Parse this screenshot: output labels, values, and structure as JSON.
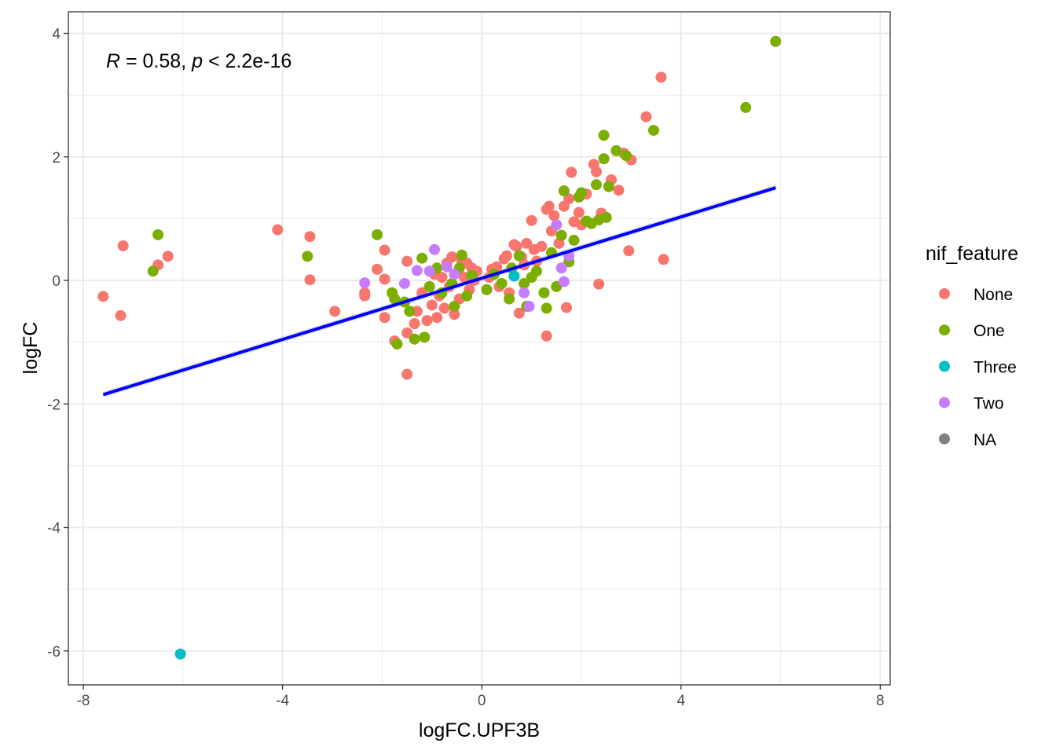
{
  "chart_data": {
    "type": "scatter",
    "xlabel": "logFC.UPF3B",
    "ylabel": "logFC",
    "xlim": [
      -8.3,
      8.2
    ],
    "ylim": [
      -6.55,
      4.35
    ],
    "x_ticks": [
      -8,
      -4,
      0,
      4,
      8
    ],
    "y_ticks": [
      -6,
      -4,
      -2,
      0,
      2,
      4
    ],
    "x_tick_labels": [
      "-8",
      "-4",
      "0",
      "4",
      "8"
    ],
    "y_tick_labels": [
      "-6",
      "-4",
      "-2",
      "0",
      "2",
      "4"
    ],
    "grid": true,
    "annotation": {
      "r_symbol": "R",
      "r_text": " = 0.58, ",
      "p_symbol": "p",
      "p_text": " < 2.2e-16"
    },
    "regression_line": {
      "x": [
        -7.6,
        5.9
      ],
      "y": [
        -1.85,
        1.5
      ],
      "color": "#0000ff"
    },
    "legend": {
      "title": "nif_feature",
      "position": "right",
      "entries": [
        {
          "label": "None",
          "color": "#f8766d"
        },
        {
          "label": "One",
          "color": "#7cae00"
        },
        {
          "label": "Three",
          "color": "#00bfc4"
        },
        {
          "label": "Two",
          "color": "#c77cff"
        },
        {
          "label": "NA",
          "color": "#808080"
        }
      ]
    },
    "series": [
      {
        "name": "None",
        "color": "#f8766d",
        "points": [
          [
            -7.6,
            -0.26
          ],
          [
            -7.25,
            -0.57
          ],
          [
            -7.2,
            0.56
          ],
          [
            -6.5,
            0.25
          ],
          [
            -6.3,
            0.39
          ],
          [
            -4.1,
            0.82
          ],
          [
            -3.45,
            0.71
          ],
          [
            -3.45,
            0.01
          ],
          [
            -2.95,
            -0.5
          ],
          [
            -2.35,
            -0.2
          ],
          [
            -2.35,
            -0.25
          ],
          [
            -2.1,
            0.18
          ],
          [
            -1.95,
            0.49
          ],
          [
            -1.95,
            0.02
          ],
          [
            -1.95,
            -0.6
          ],
          [
            -1.75,
            -0.98
          ],
          [
            -1.5,
            -1.52
          ],
          [
            -1.5,
            0.31
          ],
          [
            -1.5,
            -0.85
          ],
          [
            -1.35,
            -0.7
          ],
          [
            -1.3,
            -0.5
          ],
          [
            -1.2,
            -0.2
          ],
          [
            -1.1,
            -0.65
          ],
          [
            -1.0,
            -0.4
          ],
          [
            -0.95,
            0.1
          ],
          [
            -0.9,
            -0.6
          ],
          [
            -0.85,
            -0.25
          ],
          [
            -0.8,
            0.05
          ],
          [
            -0.75,
            -0.45
          ],
          [
            -0.7,
            0.28
          ],
          [
            -0.65,
            -0.1
          ],
          [
            -0.6,
            0.38
          ],
          [
            -0.55,
            -0.55
          ],
          [
            -0.5,
            0.12
          ],
          [
            -0.45,
            -0.3
          ],
          [
            -0.4,
            0.32
          ],
          [
            -0.35,
            0.05
          ],
          [
            -0.3,
            0.28
          ],
          [
            -0.25,
            -0.15
          ],
          [
            -0.2,
            0.2
          ],
          [
            -0.15,
            0.0
          ],
          [
            -0.1,
            0.15
          ],
          [
            0.15,
            0.05
          ],
          [
            0.2,
            0.18
          ],
          [
            0.3,
            0.22
          ],
          [
            0.35,
            -0.1
          ],
          [
            0.45,
            0.35
          ],
          [
            0.5,
            0.4
          ],
          [
            0.55,
            -0.2
          ],
          [
            0.65,
            0.58
          ],
          [
            0.7,
            0.55
          ],
          [
            0.75,
            -0.53
          ],
          [
            0.8,
            0.38
          ],
          [
            0.85,
            0.25
          ],
          [
            0.9,
            0.6
          ],
          [
            1.0,
            0.97
          ],
          [
            1.05,
            0.5
          ],
          [
            1.1,
            0.31
          ],
          [
            1.2,
            0.55
          ],
          [
            1.3,
            1.15
          ],
          [
            1.3,
            -0.9
          ],
          [
            1.35,
            1.2
          ],
          [
            1.4,
            0.8
          ],
          [
            1.45,
            1.05
          ],
          [
            1.55,
            0.6
          ],
          [
            1.65,
            1.2
          ],
          [
            1.7,
            -0.44
          ],
          [
            1.75,
            1.32
          ],
          [
            1.8,
            1.75
          ],
          [
            1.85,
            0.95
          ],
          [
            1.95,
            1.1
          ],
          [
            2.0,
            0.9
          ],
          [
            2.1,
            1.4
          ],
          [
            2.25,
            1.88
          ],
          [
            2.3,
            1.76
          ],
          [
            2.35,
            -0.06
          ],
          [
            2.4,
            1.09
          ],
          [
            2.6,
            1.63
          ],
          [
            2.75,
            1.46
          ],
          [
            2.85,
            2.06
          ],
          [
            2.95,
            0.48
          ],
          [
            3.0,
            1.95
          ],
          [
            3.3,
            2.65
          ],
          [
            3.6,
            3.29
          ],
          [
            3.65,
            0.34
          ]
        ]
      },
      {
        "name": "One",
        "color": "#7cae00",
        "points": [
          [
            -6.6,
            0.15
          ],
          [
            -6.5,
            0.74
          ],
          [
            -3.5,
            0.39
          ],
          [
            -2.1,
            0.74
          ],
          [
            -1.8,
            -0.2
          ],
          [
            -1.75,
            -0.3
          ],
          [
            -1.7,
            -1.03
          ],
          [
            -1.55,
            -0.35
          ],
          [
            -1.45,
            -0.5
          ],
          [
            -1.35,
            -0.95
          ],
          [
            -1.2,
            0.36
          ],
          [
            -1.15,
            -0.92
          ],
          [
            -1.05,
            -0.1
          ],
          [
            -0.9,
            0.2
          ],
          [
            -0.8,
            -0.2
          ],
          [
            -0.6,
            -0.05
          ],
          [
            -0.55,
            -0.42
          ],
          [
            -0.45,
            0.2
          ],
          [
            -0.4,
            0.41
          ],
          [
            -0.3,
            -0.25
          ],
          [
            -0.2,
            0.08
          ],
          [
            0.1,
            -0.15
          ],
          [
            0.25,
            0.1
          ],
          [
            0.4,
            -0.05
          ],
          [
            0.55,
            -0.3
          ],
          [
            0.6,
            0.2
          ],
          [
            0.75,
            0.4
          ],
          [
            0.85,
            -0.05
          ],
          [
            0.9,
            -0.42
          ],
          [
            1.0,
            0.05
          ],
          [
            1.1,
            0.15
          ],
          [
            1.25,
            -0.2
          ],
          [
            1.3,
            -0.45
          ],
          [
            1.4,
            0.45
          ],
          [
            1.5,
            -0.1
          ],
          [
            1.6,
            0.73
          ],
          [
            1.65,
            1.45
          ],
          [
            1.75,
            0.3
          ],
          [
            1.85,
            0.65
          ],
          [
            1.95,
            1.35
          ],
          [
            2.0,
            1.42
          ],
          [
            2.1,
            0.96
          ],
          [
            2.2,
            0.92
          ],
          [
            2.3,
            1.55
          ],
          [
            2.35,
            0.98
          ],
          [
            2.45,
            1.97
          ],
          [
            2.45,
            2.35
          ],
          [
            2.5,
            1.02
          ],
          [
            2.55,
            1.52
          ],
          [
            2.7,
            2.1
          ],
          [
            2.9,
            2.02
          ],
          [
            3.45,
            2.43
          ],
          [
            5.3,
            2.8
          ],
          [
            5.9,
            3.87
          ]
        ]
      },
      {
        "name": "Three",
        "color": "#00bfc4",
        "points": [
          [
            -6.05,
            -6.05
          ],
          [
            0.65,
            0.07
          ]
        ]
      },
      {
        "name": "Two",
        "color": "#c77cff",
        "points": [
          [
            -2.35,
            -0.04
          ],
          [
            -1.55,
            -0.05
          ],
          [
            -1.3,
            0.16
          ],
          [
            -1.05,
            0.15
          ],
          [
            -0.95,
            0.5
          ],
          [
            -0.7,
            0.22
          ],
          [
            -0.55,
            0.1
          ],
          [
            0.85,
            -0.2
          ],
          [
            0.95,
            -0.42
          ],
          [
            1.5,
            0.9
          ],
          [
            1.65,
            -0.02
          ],
          [
            1.75,
            0.4
          ],
          [
            1.6,
            0.2
          ]
        ]
      }
    ]
  }
}
